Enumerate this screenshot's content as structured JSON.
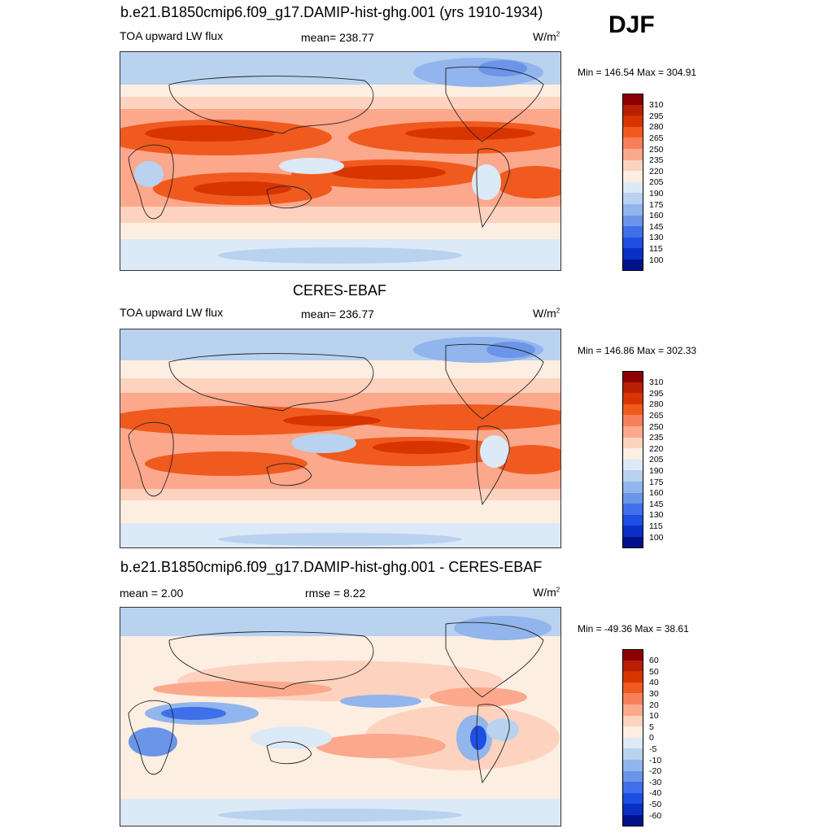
{
  "season": "DJF",
  "panels": [
    {
      "title": "b.e21.B1850cmip6.f09_g17.DAMIP-hist-ghg.001 (yrs 1910-1934)",
      "left_label": "TOA upward LW flux",
      "center_label": "mean= 238.77",
      "units": "W/m",
      "units_sup": "2",
      "minmax": "Min = 146.54 Max = 304.91",
      "colorbar_labels": [
        "310",
        "295",
        "280",
        "265",
        "250",
        "235",
        "220",
        "205",
        "190",
        "175",
        "160",
        "145",
        "130",
        "115",
        "100"
      ],
      "colors": [
        "#8b0000",
        "#b81f05",
        "#d83400",
        "#f05a1e",
        "#f7805a",
        "#fca88c",
        "#fdd3c0",
        "#fdeee2",
        "#dce9f7",
        "#b9d2f0",
        "#91b5ec",
        "#6a95e8",
        "#3f70ea",
        "#1d4fe4",
        "#0a2fc4",
        "#00128a"
      ]
    },
    {
      "title": "CERES-EBAF",
      "left_label": "TOA upward LW flux",
      "center_label": "mean= 236.77",
      "units": "W/m",
      "units_sup": "2",
      "minmax": "Min = 146.86 Max = 302.33",
      "colorbar_labels": [
        "310",
        "295",
        "280",
        "265",
        "250",
        "235",
        "220",
        "205",
        "190",
        "175",
        "160",
        "145",
        "130",
        "115",
        "100"
      ],
      "colors": [
        "#8b0000",
        "#b81f05",
        "#d83400",
        "#f05a1e",
        "#f7805a",
        "#fca88c",
        "#fdd3c0",
        "#fdeee2",
        "#dce9f7",
        "#b9d2f0",
        "#91b5ec",
        "#6a95e8",
        "#3f70ea",
        "#1d4fe4",
        "#0a2fc4",
        "#00128a"
      ]
    },
    {
      "title": "b.e21.B1850cmip6.f09_g17.DAMIP-hist-ghg.001 - CERES-EBAF",
      "left_label": "mean =   2.00",
      "center_label": "rmse =   8.22",
      "units": "W/m",
      "units_sup": "2",
      "minmax": "Min = -49.36 Max =  38.61",
      "colorbar_labels": [
        "60",
        "50",
        "40",
        "30",
        "20",
        "10",
        "5",
        "0",
        "-5",
        "-10",
        "-20",
        "-30",
        "-40",
        "-50",
        "-60"
      ],
      "colors": [
        "#8b0000",
        "#b81f05",
        "#d83400",
        "#f05a1e",
        "#f7805a",
        "#fca88c",
        "#fdd3c0",
        "#fdeee2",
        "#dce9f7",
        "#b9d2f0",
        "#91b5ec",
        "#6a95e8",
        "#3f70ea",
        "#1d4fe4",
        "#0a2fc4",
        "#00128a"
      ]
    }
  ]
}
